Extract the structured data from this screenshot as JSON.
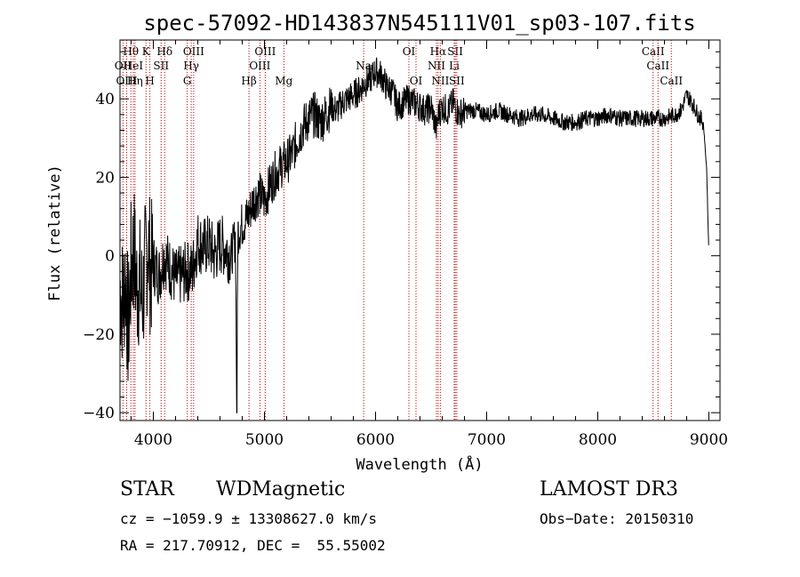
{
  "chart_data": {
    "type": "line",
    "title": "spec-57092-HD143837N545111V01_sp03-107.fits",
    "xlabel": "Wavelength (Å)",
    "ylabel": "Flux (relative)",
    "xlim": [
      3700,
      9100
    ],
    "ylim": [
      -42,
      55
    ],
    "x_ticks": [
      4000,
      5000,
      6000,
      7000,
      8000,
      9000
    ],
    "y_ticks": [
      -40,
      -20,
      0,
      20,
      40
    ],
    "series": [
      {
        "name": "spectrum",
        "x": [
          3700,
          3725,
          3750,
          3775,
          3800,
          3825,
          3850,
          3875,
          3900,
          3925,
          3950,
          3975,
          4000,
          4050,
          4100,
          4150,
          4200,
          4250,
          4300,
          4350,
          4400,
          4450,
          4500,
          4550,
          4600,
          4650,
          4700,
          4740,
          4750,
          4760,
          4800,
          4850,
          4900,
          4950,
          5000,
          5050,
          5100,
          5150,
          5200,
          5250,
          5300,
          5350,
          5400,
          5450,
          5500,
          5550,
          5600,
          5650,
          5700,
          5750,
          5800,
          5850,
          5900,
          5950,
          6000,
          6050,
          6100,
          6150,
          6200,
          6250,
          6300,
          6350,
          6400,
          6450,
          6500,
          6550,
          6563,
          6600,
          6650,
          6700,
          6750,
          6800,
          6900,
          7000,
          7100,
          7200,
          7300,
          7400,
          7500,
          7600,
          7700,
          7800,
          7900,
          8000,
          8100,
          8200,
          8300,
          8400,
          8500,
          8600,
          8700,
          8750,
          8800,
          8850,
          8900,
          8950,
          8980,
          9000
        ],
        "y": [
          -8,
          -12,
          -5,
          -20,
          -3,
          2,
          -8,
          -6,
          -12,
          -4,
          4,
          -4,
          -2,
          -5,
          0,
          -3,
          -6,
          -5,
          -4,
          -4,
          4,
          2,
          3,
          0,
          3,
          2,
          0,
          5,
          -40,
          6,
          8,
          10,
          14,
          16,
          14,
          18,
          21,
          23,
          24,
          26,
          30,
          33,
          35,
          36,
          34,
          36,
          38,
          37,
          39,
          40,
          41,
          42,
          44,
          45,
          47,
          46,
          43,
          42,
          38,
          39,
          40,
          39,
          38,
          37,
          38,
          32,
          36,
          38,
          37,
          39,
          36,
          37,
          37,
          36,
          37,
          36,
          35,
          36,
          36,
          35,
          34,
          34,
          35,
          35,
          36,
          35,
          35,
          35,
          35,
          35,
          36,
          37,
          41,
          39,
          36,
          34,
          22,
          0
        ]
      }
    ],
    "spectral_lines": [
      {
        "label": "Hθ",
        "x": 3798,
        "row": 1
      },
      {
        "label": "OII",
        "x": 3727,
        "row": 2
      },
      {
        "label": "HeI",
        "x": 3820,
        "row": 2
      },
      {
        "label": "OIII",
        "x": 3760,
        "row": 3
      },
      {
        "label": "Hη",
        "x": 3835,
        "row": 3
      },
      {
        "label": "K",
        "x": 3934,
        "row": 1
      },
      {
        "label": "SII",
        "x": 4070,
        "row": 2
      },
      {
        "label": "H",
        "x": 3969,
        "row": 3
      },
      {
        "label": "Hδ",
        "x": 4102,
        "row": 1
      },
      {
        "label": "OIII",
        "x": 4363,
        "row": 1
      },
      {
        "label": "Hγ",
        "x": 4341,
        "row": 2
      },
      {
        "label": "G",
        "x": 4305,
        "row": 3
      },
      {
        "label": "OIII",
        "x": 5007,
        "row": 1
      },
      {
        "label": "OIII",
        "x": 4959,
        "row": 2
      },
      {
        "label": "Hβ",
        "x": 4861,
        "row": 3
      },
      {
        "label": "Mg",
        "x": 5175,
        "row": 3
      },
      {
        "label": "Na",
        "x": 5893,
        "row": 2
      },
      {
        "label": "OI",
        "x": 6300,
        "row": 1
      },
      {
        "label": "OI",
        "x": 6364,
        "row": 3
      },
      {
        "label": "Hα",
        "x": 6563,
        "row": 1
      },
      {
        "label": "SII",
        "x": 6717,
        "row": 1
      },
      {
        "label": "NII",
        "x": 6548,
        "row": 2
      },
      {
        "label": "Li",
        "x": 6708,
        "row": 2
      },
      {
        "label": "NII",
        "x": 6583,
        "row": 3
      },
      {
        "label": "SII",
        "x": 6731,
        "row": 3
      },
      {
        "label": "CaII",
        "x": 8498,
        "row": 1
      },
      {
        "label": "CaII",
        "x": 8542,
        "row": 2
      },
      {
        "label": "CaII",
        "x": 8662,
        "row": 3
      }
    ]
  },
  "info": {
    "class": "STAR",
    "subclass": "WDMagnetic",
    "survey": "LAMOST DR3",
    "cz": "cz = −1059.9 ± 13308627.0 km/s",
    "obs_date": "Obs−Date: 20150310",
    "coords": "RA = 217.70912, DEC =  55.55002"
  }
}
